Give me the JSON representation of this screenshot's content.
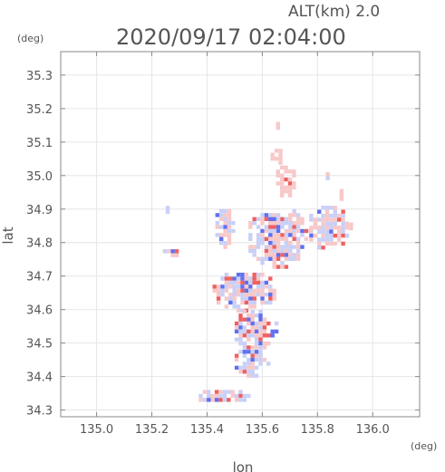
{
  "header": {
    "altitude": "ALT(km) 2.0",
    "timestamp": "2020/09/17 02:04:00"
  },
  "chart_data": {
    "type": "heatmap",
    "title": "2020/09/17 02:04:00",
    "subtitle": "ALT(km) 2.0",
    "xlabel": "lon",
    "ylabel": "lat",
    "xunit": "(deg)",
    "yunit": "(deg)",
    "xlim": [
      134.87,
      136.17
    ],
    "ylim": [
      34.28,
      35.37
    ],
    "xticks": [
      135.0,
      135.2,
      135.4,
      135.6,
      135.8,
      136.0
    ],
    "yticks": [
      34.3,
      34.4,
      34.5,
      34.6,
      34.7,
      34.8,
      34.9,
      35.0,
      35.1,
      35.2,
      35.3
    ],
    "xtick_labels": [
      "135.0",
      "135.2",
      "135.4",
      "135.6",
      "135.8",
      "136.0"
    ],
    "ytick_labels": [
      "34.3",
      "34.4",
      "34.5",
      "34.6",
      "34.7",
      "34.8",
      "34.9",
      "35.0",
      "35.1",
      "35.2",
      "35.3"
    ],
    "grid": true,
    "colors": {
      "positive": "#f06060",
      "positive_light": "#f8c8c8",
      "negative": "#6070f0",
      "negative_light": "#c8d0f8",
      "frame": "#888888",
      "grid": "#e6e6e6"
    },
    "regions": [
      {
        "lon_range": [
          135.63,
          135.69
        ],
        "lat_range": [
          35.03,
          35.08
        ],
        "sign": "positive",
        "intensity": 0.35
      },
      {
        "lon_range": [
          135.65,
          135.72
        ],
        "lat_range": [
          34.93,
          35.03
        ],
        "sign": "positive",
        "intensity": 0.35
      },
      {
        "lon_range": [
          135.77,
          135.91
        ],
        "lat_range": [
          34.78,
          34.91
        ],
        "sign": "mixed",
        "intensity": 0.6
      },
      {
        "lon_range": [
          135.55,
          135.77
        ],
        "lat_range": [
          34.73,
          34.9
        ],
        "sign": "mixed",
        "intensity": 0.6
      },
      {
        "lon_range": [
          135.42,
          135.65
        ],
        "lat_range": [
          34.6,
          34.71
        ],
        "sign": "mixed",
        "intensity": 0.8
      },
      {
        "lon_range": [
          135.5,
          135.65
        ],
        "lat_range": [
          34.48,
          34.6
        ],
        "sign": "mixed",
        "intensity": 0.8
      },
      {
        "lon_range": [
          135.5,
          135.62
        ],
        "lat_range": [
          34.4,
          34.48
        ],
        "sign": "mixed",
        "intensity": 0.6
      },
      {
        "lon_range": [
          135.37,
          135.55
        ],
        "lat_range": [
          34.32,
          34.36
        ],
        "sign": "mixed",
        "intensity": 0.5
      },
      {
        "lon_range": [
          135.43,
          135.5
        ],
        "lat_range": [
          34.79,
          34.9
        ],
        "sign": "mixed",
        "intensity": 0.35
      },
      {
        "lon_range": [
          135.24,
          135.3
        ],
        "lat_range": [
          34.76,
          34.78
        ],
        "sign": "mixed",
        "intensity": 0.4
      },
      {
        "lon_range": [
          135.25,
          135.27
        ],
        "lat_range": [
          34.89,
          34.91
        ],
        "sign": "negative",
        "intensity": 0.3
      },
      {
        "lon_range": [
          135.9,
          135.93
        ],
        "lat_range": [
          34.84,
          34.86
        ],
        "sign": "positive",
        "intensity": 0.4
      },
      {
        "lon_range": [
          135.88,
          135.9
        ],
        "lat_range": [
          34.93,
          34.96
        ],
        "sign": "positive",
        "intensity": 0.3
      },
      {
        "lon_range": [
          135.83,
          135.85
        ],
        "lat_range": [
          34.99,
          35.01
        ],
        "sign": "mixed",
        "intensity": 0.3
      },
      {
        "lon_range": [
          135.65,
          135.67
        ],
        "lat_range": [
          35.14,
          35.16
        ],
        "sign": "positive",
        "intensity": 0.4
      }
    ]
  }
}
